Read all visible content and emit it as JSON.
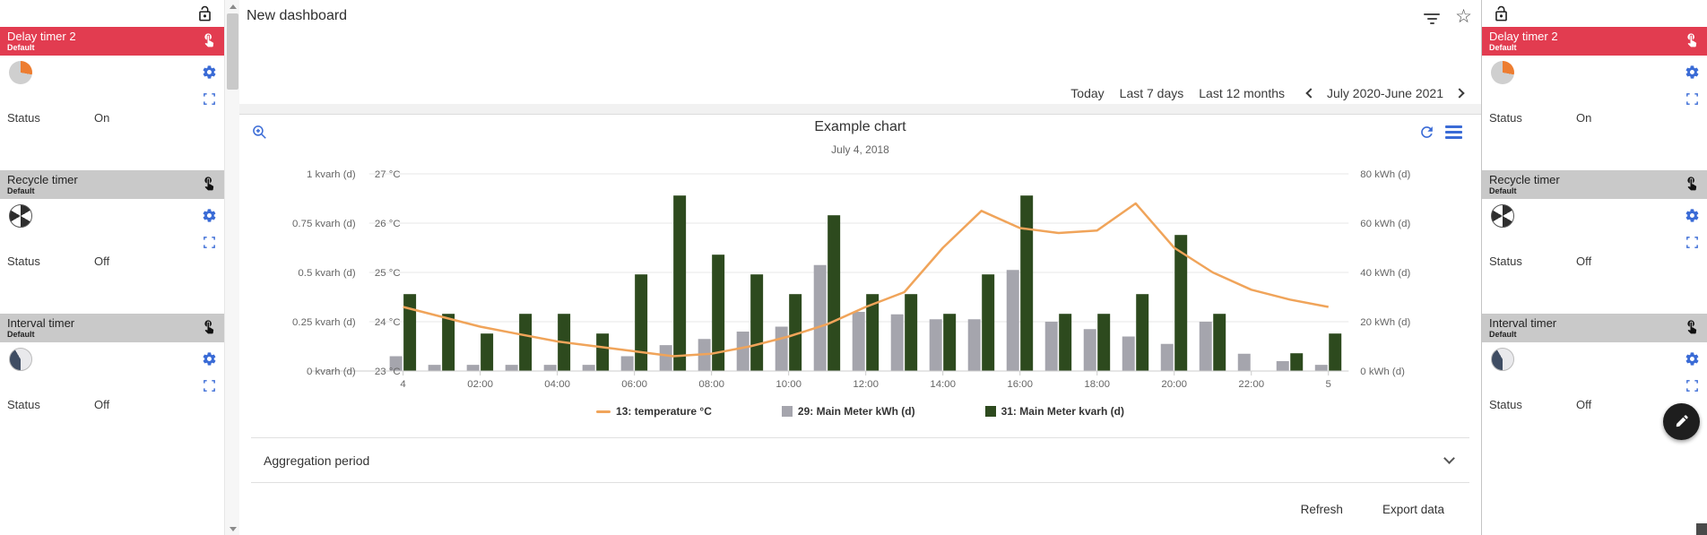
{
  "header": {
    "title": "New dashboard",
    "icons": [
      "filter-icon",
      "star-icon"
    ]
  },
  "date_controls": {
    "presets": [
      {
        "label": "Today"
      },
      {
        "label": "Last 7 days"
      },
      {
        "label": "Last 12 months"
      }
    ],
    "range": "July 2020-June 2021",
    "prev_icon": "chevron-left-icon",
    "next_icon": "chevron-right-icon"
  },
  "chart": {
    "title": "Example chart",
    "subtitle": "July 4, 2018",
    "toolbar_icons": [
      "zoom-in-icon",
      "refresh-icon",
      "context-menu-icon"
    ]
  },
  "chart_data": {
    "type": "combo",
    "title": "Example chart",
    "subtitle": "July 4, 2018",
    "x_hours_range": [
      0,
      24
    ],
    "x_tick_labels": [
      "4",
      "02:00",
      "04:00",
      "06:00",
      "08:00",
      "10:00",
      "12:00",
      "14:00",
      "16:00",
      "18:00",
      "20:00",
      "22:00",
      "5"
    ],
    "x_tick_hour_step": 2,
    "grid": true,
    "legend_position": "bottom",
    "axes": {
      "kvarh": {
        "side": "left-outer",
        "min": 0,
        "max": 1,
        "ticks": [
          "0 kvarh (d)",
          "0.25 kvarh (d)",
          "0.5 kvarh (d)",
          "0.75 kvarh (d)",
          "1 kvarh (d)"
        ]
      },
      "temp": {
        "side": "left-inner",
        "min": 23,
        "max": 27,
        "ticks": [
          "23 °C",
          "24 °C",
          "25 °C",
          "26 °C",
          "27 °C"
        ]
      },
      "kwh": {
        "side": "right",
        "min": 0,
        "max": 80,
        "ticks": [
          "0 kWh (d)",
          "20 kWh (d)",
          "40 kWh (d)",
          "60 kWh (d)",
          "80 kWh (d)"
        ]
      }
    },
    "series": [
      {
        "name": "13: temperature °C",
        "type": "line",
        "axis": "temp",
        "color": "#f0a45a",
        "values": [
          24.3,
          24.1,
          23.9,
          23.75,
          23.6,
          23.5,
          23.4,
          23.3,
          23.35,
          23.5,
          23.7,
          23.95,
          24.3,
          24.6,
          25.5,
          26.25,
          25.9,
          25.8,
          25.85,
          26.4,
          25.5,
          25.0,
          24.65,
          24.45,
          24.3
        ]
      },
      {
        "name": "29: Main Meter kWh (d)",
        "type": "bar",
        "axis": "kwh",
        "color": "#a5a5ad",
        "values": [
          6,
          2.5,
          2.5,
          2.5,
          2.5,
          2.5,
          6,
          10.5,
          13,
          16,
          18,
          43,
          24,
          23,
          21,
          21,
          41,
          20,
          17,
          14,
          11,
          20,
          7,
          4,
          2.5
        ]
      },
      {
        "name": "31: Main Meter kvarh (d)",
        "type": "bar",
        "axis": "kvarh",
        "color": "#2d4a1e",
        "values": [
          0.39,
          0.29,
          0.19,
          0.29,
          0.29,
          0.19,
          0.49,
          0.89,
          0.59,
          0.49,
          0.39,
          0.79,
          0.39,
          0.39,
          0.29,
          0.49,
          0.89,
          0.29,
          0.29,
          0.39,
          0.69,
          0.29,
          0,
          0.09,
          0.19
        ]
      }
    ]
  },
  "aggregation": {
    "label": "Aggregation period"
  },
  "footer": {
    "refresh": "Refresh",
    "export": "Export data"
  },
  "sidebar": {
    "cards": [
      {
        "title": "Delay timer 2",
        "subtitle": "Default",
        "status_label": "Status",
        "status_value": "On",
        "header_color": "#e23c50",
        "icon": "delay-pie-icon"
      },
      {
        "title": "Recycle timer",
        "subtitle": "Default",
        "status_label": "Status",
        "status_value": "Off",
        "header_color": "#c9c9c9",
        "icon": "pinwheel-icon"
      },
      {
        "title": "Interval timer",
        "subtitle": "Default",
        "status_label": "Status",
        "status_value": "Off",
        "header_color": "#c9c9c9",
        "icon": "interval-pie-icon"
      }
    ]
  },
  "colors": {
    "accent_blue": "#3a6bd6",
    "card_red": "#e23c50",
    "card_gray": "#c9c9c9",
    "line_orange": "#f0a45a",
    "bar_gray": "#a5a5ad",
    "bar_green": "#2d4a1e"
  }
}
